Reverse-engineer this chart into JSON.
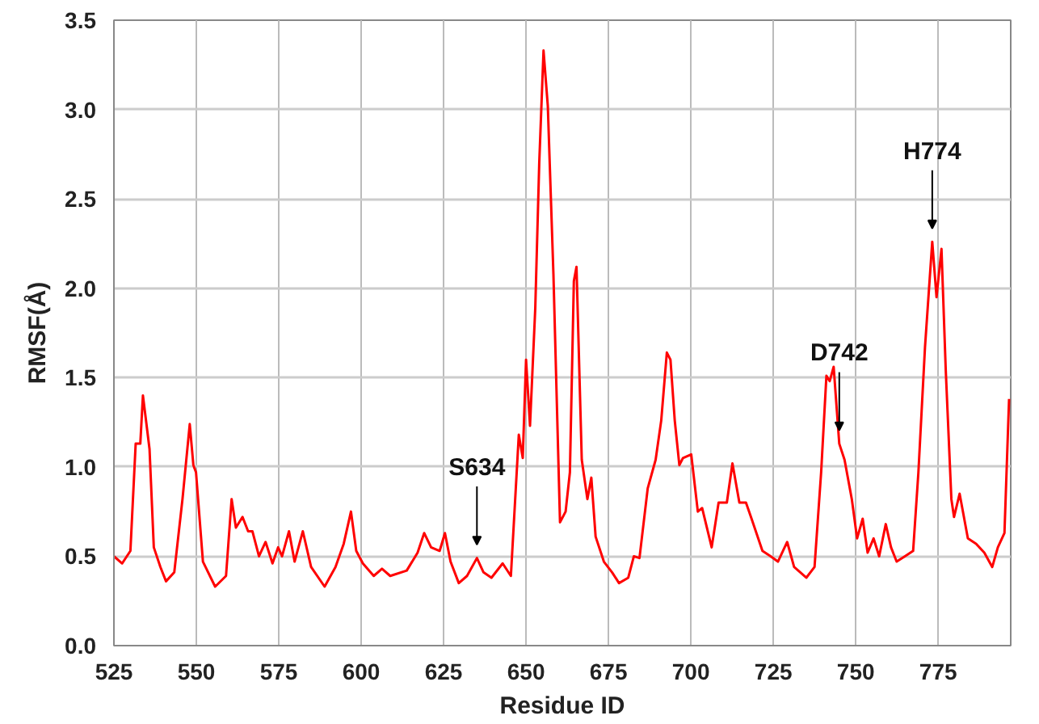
{
  "chart_data": {
    "type": "line",
    "xlabel": "Residue ID",
    "ylabel": "RMSF(Å)",
    "xlim": [
      525,
      797
    ],
    "ylim": [
      0,
      3.5
    ],
    "xticks": [
      525,
      550,
      575,
      600,
      625,
      650,
      675,
      700,
      725,
      750,
      775
    ],
    "yticks": [
      {
        "value": 0,
        "label": "0.0"
      },
      {
        "value": 0.5,
        "label": "0.5"
      },
      {
        "value": 1,
        "label": "1.0"
      },
      {
        "value": 1.5,
        "label": "1.5"
      },
      {
        "value": 2,
        "label": "2.0"
      },
      {
        "value": 2.5,
        "label": "2.5"
      },
      {
        "value": 3,
        "label": "3.0"
      },
      {
        "value": 3.5,
        "label": "3.5"
      }
    ],
    "grid": true,
    "marker": "none",
    "line_style": "solid",
    "annotations": [
      {
        "text": "S634",
        "x": 635.1,
        "y": 0.49
      },
      {
        "text": "D742",
        "x": 745,
        "y": 1.13
      },
      {
        "text": "H774",
        "x": 773.2,
        "y": 2.26
      }
    ],
    "series": [
      {
        "color": "#ff0000",
        "x": [
          525,
          527.5,
          530,
          531.6,
          533,
          533.8,
          535.8,
          537.1,
          539.1,
          540.8,
          543.3,
          545.8,
          548,
          549.1,
          549.9,
          552,
          555.7,
          559,
          560.7,
          562,
          564,
          565.7,
          567,
          569,
          571,
          573.1,
          574.8,
          576,
          578.1,
          579.8,
          582.3,
          584.8,
          588.9,
          592.2,
          594.7,
          596.9,
          598.5,
          600.5,
          603.8,
          606.3,
          608.8,
          613.8,
          617.1,
          619.1,
          621.2,
          623.8,
          625.4,
          627.1,
          629.6,
          632.1,
          635.1,
          637.1,
          639.5,
          642.9,
          645.4,
          647.8,
          649,
          650,
          651.2,
          652.8,
          654,
          655.3,
          656.6,
          658.3,
          660.3,
          662,
          663.3,
          664.5,
          665.3,
          666.9,
          668.6,
          669.8,
          671.1,
          673.6,
          676.1,
          678.2,
          681,
          682.7,
          684.4,
          686.9,
          689.3,
          691,
          692.7,
          693.8,
          695.1,
          696.5,
          697.6,
          700.1,
          702.1,
          703.4,
          706.3,
          708.4,
          710.9,
          712.6,
          714.7,
          716.7,
          718.4,
          721.7,
          724.2,
          726.4,
          729.2,
          731.3,
          735,
          737.5,
          739.5,
          741.1,
          742.1,
          743.3,
          745,
          746.6,
          748.8,
          750.4,
          752.1,
          753.6,
          755.4,
          757.1,
          759.1,
          760.7,
          762.4,
          764.9,
          767.4,
          769,
          771,
          773.2,
          774.5,
          776,
          777.3,
          779,
          779.8,
          781.5,
          784,
          786.5,
          789,
          791.4,
          793.1,
          795.1,
          796.5
        ],
        "values": [
          0.5,
          0.46,
          0.53,
          1.13,
          1.13,
          1.4,
          1.1,
          0.55,
          0.44,
          0.36,
          0.41,
          0.82,
          1.24,
          1.01,
          0.97,
          0.47,
          0.33,
          0.39,
          0.82,
          0.66,
          0.72,
          0.64,
          0.64,
          0.5,
          0.58,
          0.46,
          0.55,
          0.5,
          0.64,
          0.47,
          0.64,
          0.44,
          0.33,
          0.44,
          0.57,
          0.75,
          0.53,
          0.46,
          0.39,
          0.43,
          0.39,
          0.42,
          0.52,
          0.63,
          0.55,
          0.53,
          0.63,
          0.47,
          0.35,
          0.39,
          0.49,
          0.41,
          0.38,
          0.46,
          0.39,
          1.18,
          1.05,
          1.6,
          1.23,
          1.89,
          2.7,
          3.33,
          3.02,
          2.08,
          0.69,
          0.75,
          0.97,
          2.04,
          2.12,
          1.04,
          0.82,
          0.94,
          0.61,
          0.47,
          0.41,
          0.35,
          0.38,
          0.5,
          0.49,
          0.88,
          1.04,
          1.26,
          1.64,
          1.6,
          1.26,
          1.01,
          1.05,
          1.07,
          0.75,
          0.77,
          0.55,
          0.8,
          0.8,
          1.02,
          0.8,
          0.8,
          0.71,
          0.53,
          0.5,
          0.47,
          0.58,
          0.44,
          0.38,
          0.44,
          0.97,
          1.51,
          1.48,
          1.56,
          1.13,
          1.04,
          0.82,
          0.6,
          0.71,
          0.52,
          0.6,
          0.5,
          0.68,
          0.55,
          0.47,
          0.5,
          0.53,
          0.97,
          1.67,
          2.26,
          1.95,
          2.22,
          1.54,
          0.82,
          0.72,
          0.85,
          0.6,
          0.57,
          0.52,
          0.44,
          0.55,
          0.63,
          1.38
        ]
      }
    ]
  }
}
